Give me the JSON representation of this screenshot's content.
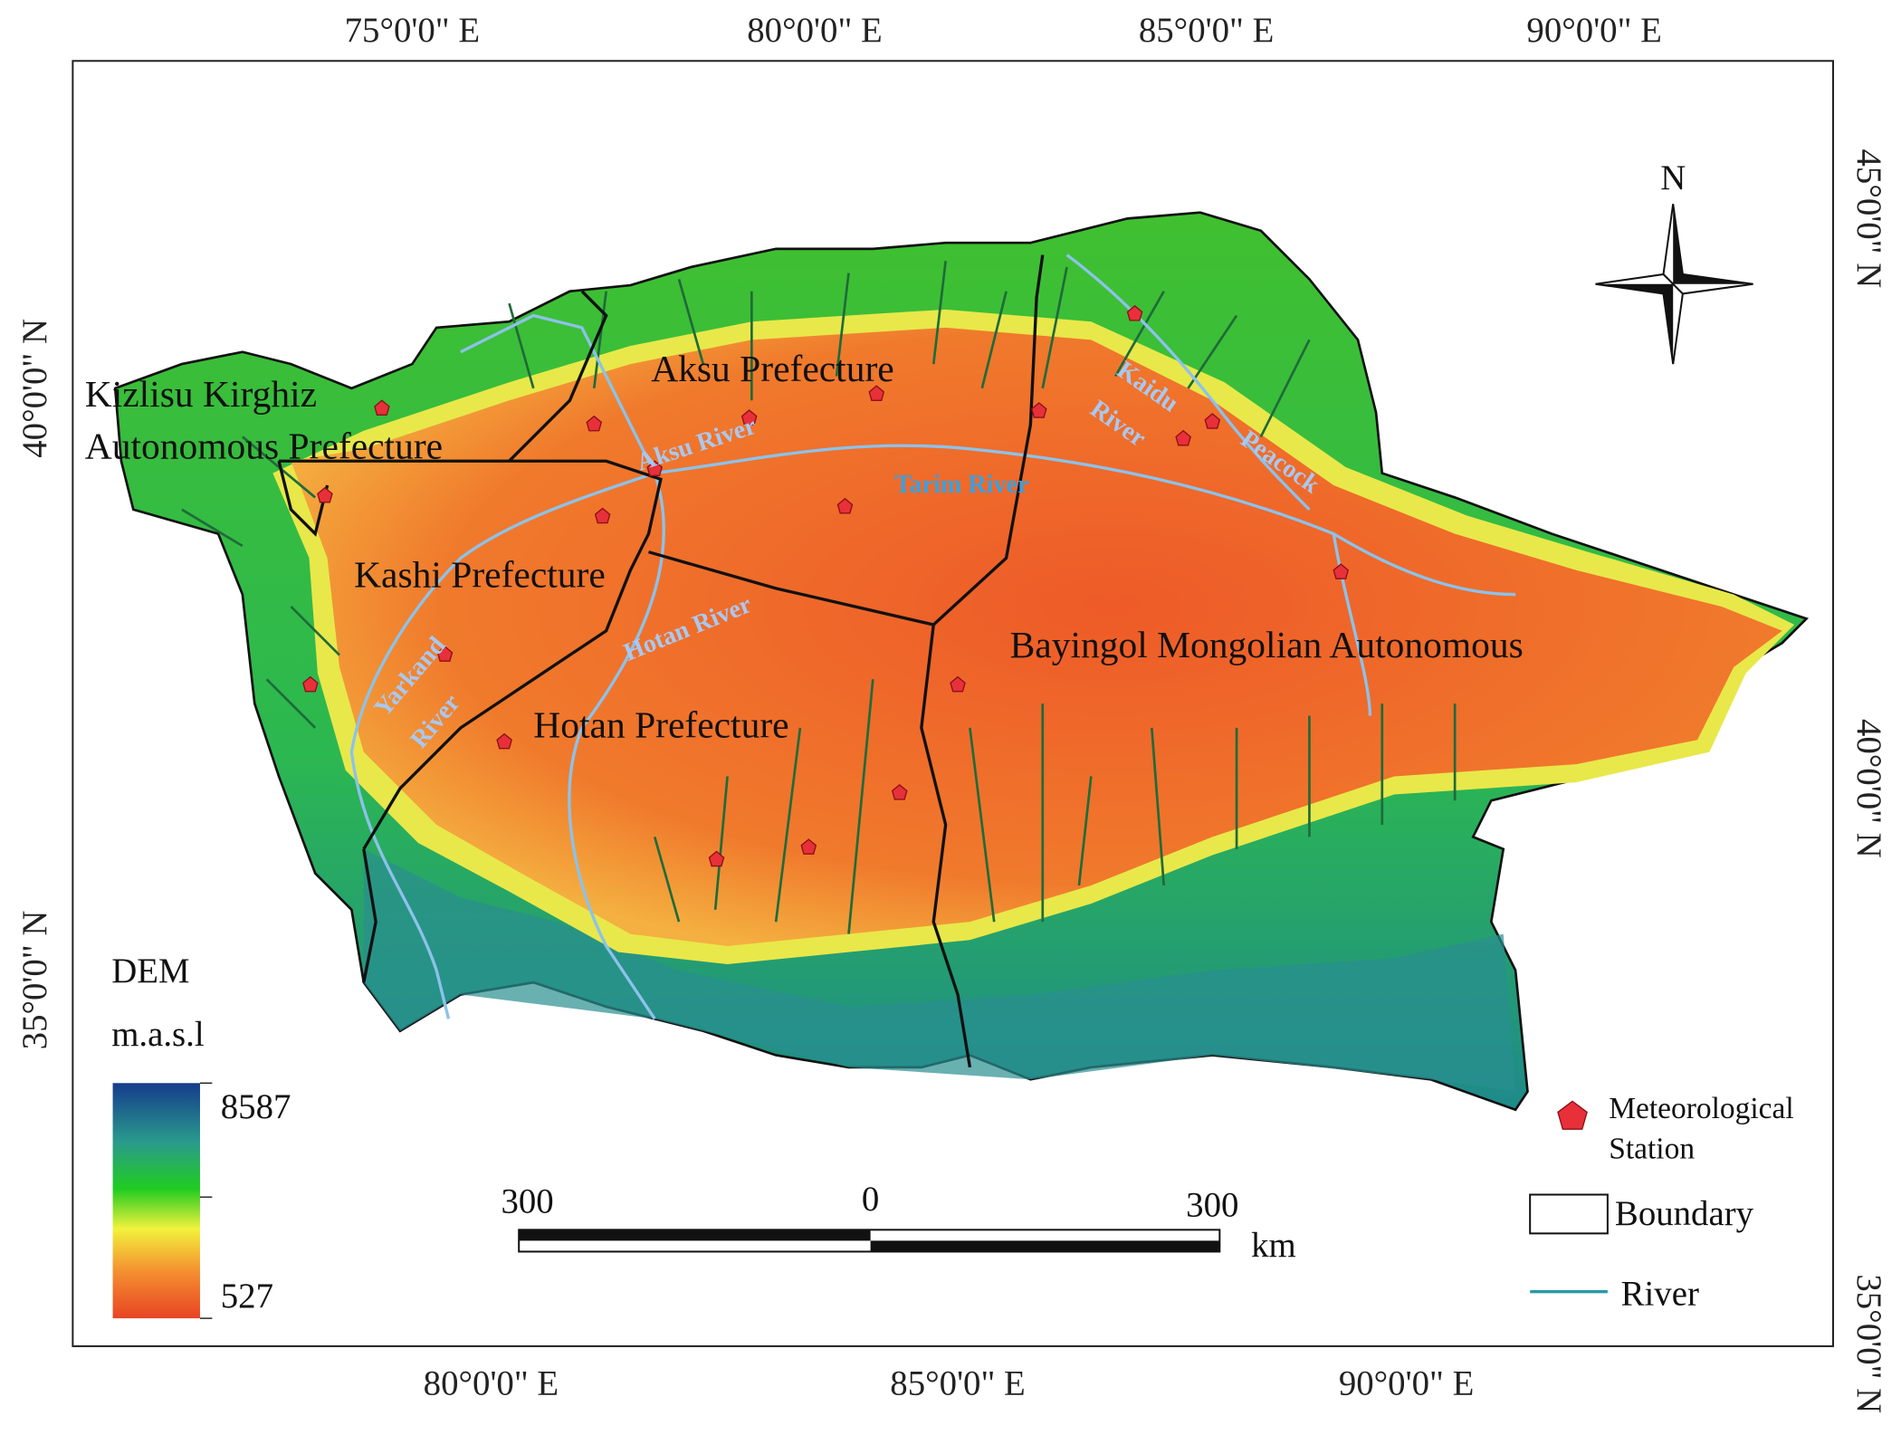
{
  "map": {
    "top_labels": [
      "75°0'0\" E",
      "80°0'0\" E",
      "85°0'0\" E",
      "90°0'0\" E"
    ],
    "bottom_labels": [
      "80°0'0\" E",
      "85°0'0\" E",
      "90°0'0\" E"
    ],
    "left_labels": [
      "40°0'0\" N",
      "35°0'0\" N"
    ],
    "right_labels": [
      "45°0'0\" N",
      "40°0'0\" N",
      "35°0'0\" N"
    ],
    "regions": [
      "Kizlisu Kirghiz",
      "Autonomous Prefecture",
      "Aksu Prefecture",
      "Kashi Prefecture",
      "Hotan Prefecture",
      "Bayingol Mongolian Autonomous"
    ],
    "rivers": [
      "Aksu River",
      "Tarim River",
      "Hotan River",
      "Yarkand",
      "River",
      "Kaidu",
      "River",
      "Peacock"
    ],
    "compass": "N",
    "dem_legend": {
      "title": "DEM",
      "unit": "m.a.s.l",
      "max": "8587",
      "min": "527"
    },
    "scale_bar": {
      "left": "300",
      "center": "0",
      "right": "300",
      "unit": "km"
    },
    "legend": {
      "station": [
        "Meteorological",
        "Station"
      ],
      "boundary": "Boundary",
      "river": "River"
    }
  }
}
